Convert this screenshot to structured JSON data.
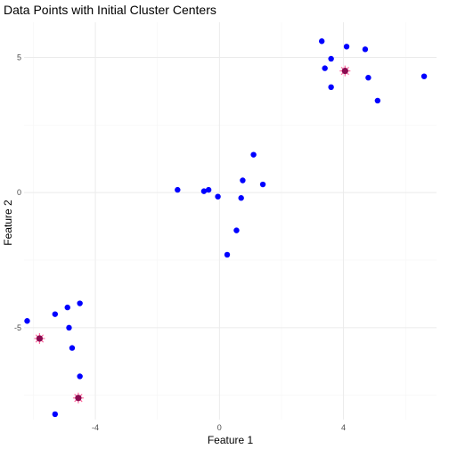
{
  "chart_data": {
    "type": "scatter",
    "title": "Data Points with Initial Cluster Centers",
    "xlabel": "Feature 1",
    "ylabel": "Feature 2",
    "xlim": [
      -6.3,
      7.0
    ],
    "ylim": [
      -8.4,
      6.3
    ],
    "x_ticks": [
      -4,
      0,
      4
    ],
    "x_tick_labels": [
      "-4",
      "0",
      "4"
    ],
    "y_ticks": [
      -5,
      0,
      5
    ],
    "y_tick_labels": [
      "-5",
      "0",
      "5"
    ],
    "grid": true,
    "legend": "none",
    "colors": {
      "points": "#0000ff",
      "center_fill": "#8b0a50",
      "center_star": "#ff6a9f",
      "grid_major": "#ebebeb",
      "grid_minor": "#f5f5f5"
    },
    "series": [
      {
        "x": [
          3.3,
          3.6,
          4.1,
          4.7,
          3.4,
          3.6,
          4.8,
          5.1,
          6.6,
          1.1,
          1.4,
          0.75,
          -1.35,
          -0.5,
          -0.35,
          -0.05,
          0.7,
          0.55,
          0.25,
          -4.5,
          -4.9,
          -5.3,
          -6.2,
          -4.85,
          -4.75,
          -4.5,
          -5.3
        ],
        "y": [
          5.6,
          4.95,
          5.4,
          5.3,
          4.6,
          3.9,
          4.25,
          3.4,
          4.3,
          1.4,
          0.3,
          0.45,
          0.1,
          0.05,
          0.1,
          -0.15,
          -0.2,
          -1.4,
          -2.3,
          -4.1,
          -4.25,
          -4.5,
          -4.75,
          -5.0,
          -5.75,
          -6.8,
          -8.2
        ]
      },
      {
        "x": [
          4.05,
          -5.8,
          -4.55
        ],
        "y": [
          4.5,
          -5.4,
          -7.6
        ]
      }
    ]
  }
}
